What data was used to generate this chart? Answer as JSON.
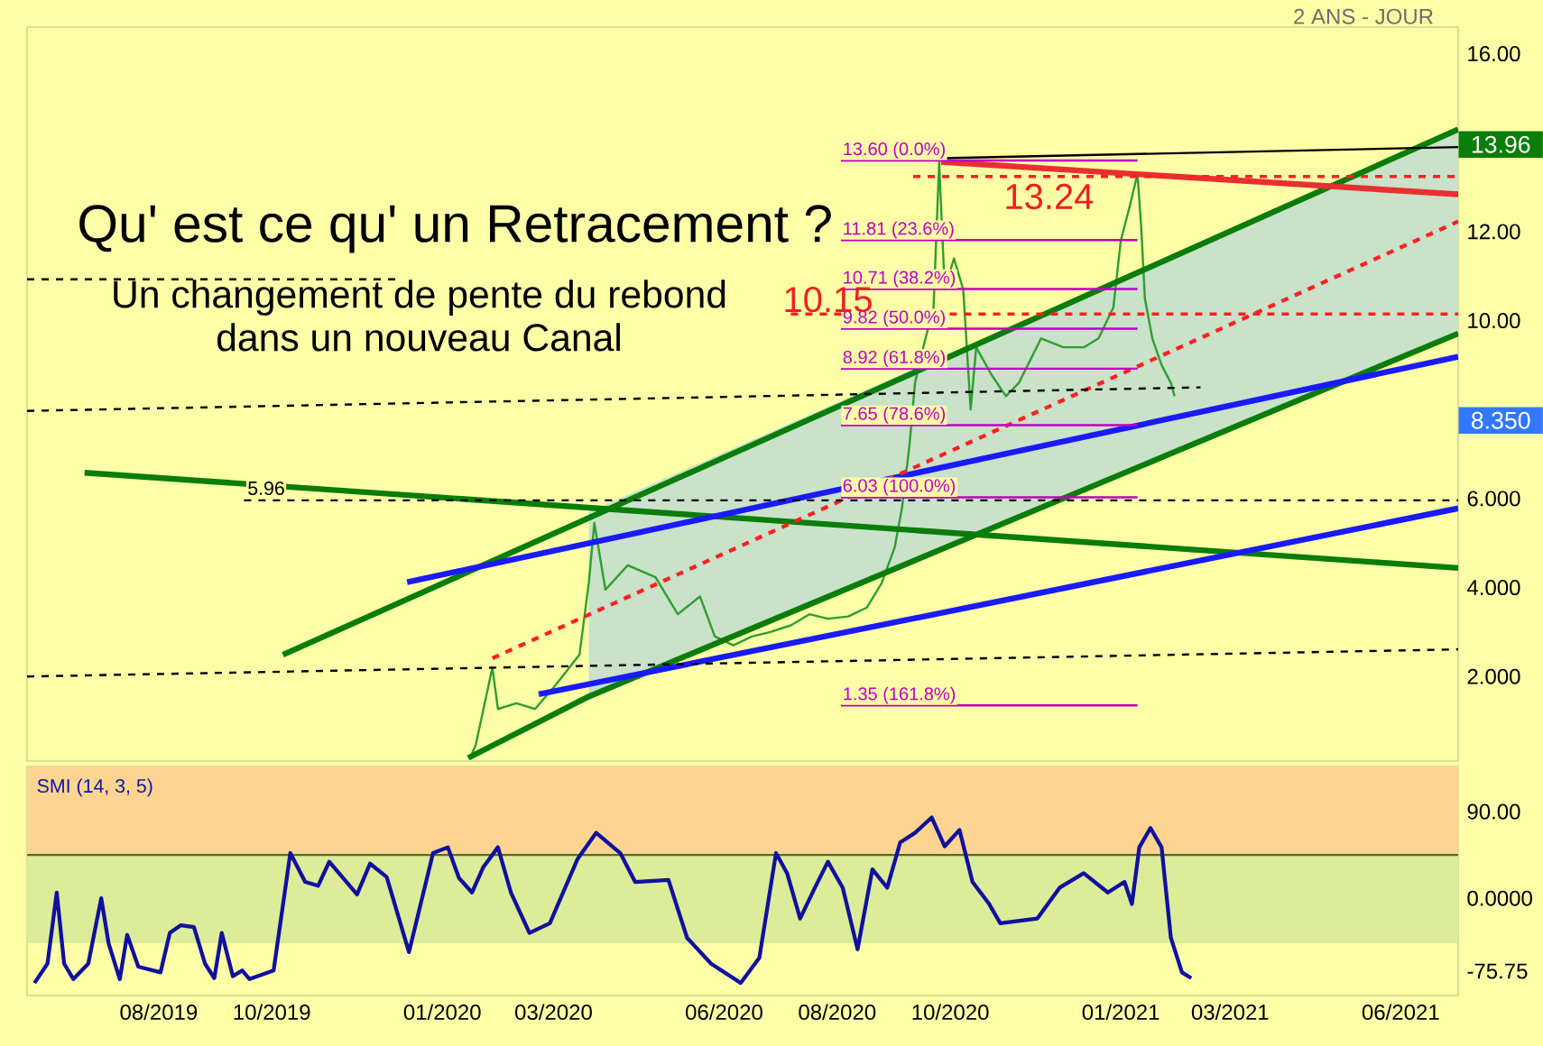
{
  "chart_data": [
    {
      "type": "line",
      "title": "Qu' est ce qu' un Retracement ?",
      "subtitle": "Un changement de pente du rebond dans un nouveau Canal",
      "xlim": [
        "2019-05-22",
        "2021-07-02"
      ],
      "ylim": [
        0.1,
        16.6
      ],
      "yticks": [
        {
          "value": 2,
          "label": "2.000"
        },
        {
          "value": 4,
          "label": "4.000"
        },
        {
          "value": 6,
          "label": "6.000"
        },
        {
          "value": 10,
          "label": "10.00"
        },
        {
          "value": 12,
          "label": "12.00"
        },
        {
          "value": 16,
          "label": "16.00"
        }
      ],
      "tick_labels": "y",
      "series": [
        {
          "type": "line",
          "color": "#2f9e2f",
          "line_style": "solid",
          "x": [
            "2020-01-16",
            "2020-01-19",
            "2020-01-28",
            "2020-01-31",
            "2020-02-10",
            "2020-02-20",
            "2020-03-02",
            "2020-03-15",
            "2020-03-20",
            "2020-03-23",
            "2020-03-29",
            "2020-04-10",
            "2020-04-25",
            "2020-05-07",
            "2020-05-19",
            "2020-05-27",
            "2020-06-06",
            "2020-06-16",
            "2020-06-26",
            "2020-07-07",
            "2020-07-17",
            "2020-07-27",
            "2020-08-07",
            "2020-08-17",
            "2020-08-25",
            "2020-09-01",
            "2020-09-05",
            "2020-09-09",
            "2020-09-12",
            "2020-09-17",
            "2020-09-22",
            "2020-09-25",
            "2020-09-28",
            "2020-10-03",
            "2020-10-08",
            "2020-10-12",
            "2020-10-15",
            "2020-10-23",
            "2020-10-31",
            "2020-11-07",
            "2020-11-19",
            "2020-12-01",
            "2020-12-12",
            "2020-12-20",
            "2020-12-28",
            "2021-01-01",
            "2021-01-06",
            "2021-01-10",
            "2021-01-12",
            "2021-01-14",
            "2021-01-18",
            "2021-01-23",
            "2021-01-28",
            "2021-01-30"
          ],
          "values": [
            0.17,
            0.46,
            2.2,
            1.27,
            1.4,
            1.27,
            1.8,
            2.49,
            4.1,
            5.45,
            3.95,
            4.5,
            4.23,
            3.4,
            3.8,
            2.9,
            2.7,
            2.9,
            3.0,
            3.15,
            3.4,
            3.3,
            3.35,
            3.55,
            4.1,
            4.9,
            5.8,
            7.2,
            8.6,
            9.5,
            10.3,
            13.56,
            10.7,
            11.4,
            10.7,
            8.0,
            9.4,
            8.8,
            8.3,
            8.6,
            9.6,
            9.4,
            9.4,
            9.6,
            10.3,
            11.8,
            12.6,
            13.3,
            12.1,
            10.5,
            9.6,
            9.0,
            8.6,
            8.3
          ]
        },
        {
          "type": "line",
          "color": "#0a7d0a",
          "line_style": "solid",
          "x": [
            "2019-10-07",
            "2021-07-02"
          ],
          "values": [
            2.49,
            14.3
          ]
        },
        {
          "type": "line",
          "color": "#0a7d0a",
          "line_style": "solid",
          "x": [
            "2020-01-15",
            "2020-03-20",
            "2021-07-02"
          ],
          "values": [
            0.17,
            1.55,
            9.71
          ],
          "lower": [
            null,
            1.55,
            9.71
          ],
          "upper": [
            null,
            5.7,
            14.3
          ]
        },
        {
          "type": "line",
          "color": "#0a7d0a",
          "line_style": "solid",
          "x": [
            "2019-06-22",
            "2021-07-02"
          ],
          "values": [
            6.58,
            4.44
          ]
        },
        {
          "type": "line",
          "color": "#1a1aff",
          "line_style": "solid",
          "x": [
            "2020-02-22",
            "2021-07-02"
          ],
          "values": [
            1.6,
            5.78
          ]
        },
        {
          "type": "line",
          "color": "#1a1aff",
          "line_style": "solid",
          "x": [
            "2019-12-13",
            "2021-07-02"
          ],
          "values": [
            4.12,
            9.19
          ]
        },
        {
          "type": "line",
          "color": "#e83030",
          "line_style": "solid",
          "x": [
            "2020-09-26",
            "2021-07-02"
          ],
          "values": [
            13.57,
            12.84
          ]
        },
        {
          "type": "line",
          "color": "#ff2020",
          "line_style": "dashed",
          "x": [
            "2020-01-28",
            "2021-07-02"
          ],
          "values": [
            2.41,
            12.23
          ]
        },
        {
          "type": "line",
          "color": "#ff2020",
          "line_style": "dashed",
          "x": [
            "2020-09-11",
            "2021-07-02"
          ],
          "values": [
            13.24,
            13.24
          ]
        },
        {
          "type": "line",
          "color": "#ff2020",
          "line_style": "dashed",
          "x": [
            "2020-07-07",
            "2021-07-02"
          ],
          "values": [
            10.15,
            10.15
          ]
        },
        {
          "type": "line",
          "color": "#000000",
          "line_style": "dashed",
          "x": [
            "2019-05-22",
            "2021-02-13"
          ],
          "values": [
            7.97,
            8.5
          ]
        },
        {
          "type": "line",
          "color": "#000000",
          "line_style": "dashed",
          "x": [
            "2019-09-16",
            "2021-07-02"
          ],
          "values": [
            5.96,
            5.96
          ]
        },
        {
          "type": "line",
          "color": "#000000",
          "line_style": "dashed",
          "x": [
            "2019-05-22",
            "2021-07-02"
          ],
          "values": [
            2.0,
            2.61
          ]
        },
        {
          "type": "line",
          "color": "#000000",
          "line_style": "dashed",
          "x": [
            "2019-05-22",
            "2019-12-07"
          ],
          "values": [
            10.93,
            10.93
          ]
        },
        {
          "type": "line",
          "color": "#000000",
          "line_style": "solid",
          "x": [
            "2020-09-26",
            "2021-07-02"
          ],
          "values": [
            13.65,
            13.9
          ]
        },
        {
          "type": "line",
          "color": "#c000c0",
          "line_style": "solid",
          "x": [
            "2020-08-03",
            "2021-01-10"
          ],
          "values": [
            13.6,
            13.6
          ]
        },
        {
          "type": "line",
          "color": "#c000c0",
          "line_style": "solid",
          "x": [
            "2020-08-03",
            "2021-01-10"
          ],
          "values": [
            11.81,
            11.81
          ]
        },
        {
          "type": "line",
          "color": "#c000c0",
          "line_style": "solid",
          "x": [
            "2020-08-03",
            "2021-01-10"
          ],
          "values": [
            10.71,
            10.71
          ]
        },
        {
          "type": "line",
          "color": "#c000c0",
          "line_style": "solid",
          "x": [
            "2020-08-03",
            "2021-01-10"
          ],
          "values": [
            9.82,
            9.82
          ]
        },
        {
          "type": "line",
          "color": "#c000c0",
          "line_style": "solid",
          "x": [
            "2020-08-03",
            "2021-01-10"
          ],
          "values": [
            8.92,
            8.92
          ]
        },
        {
          "type": "line",
          "color": "#c000c0",
          "line_style": "solid",
          "x": [
            "2020-08-03",
            "2021-01-10"
          ],
          "values": [
            7.65,
            7.65
          ]
        },
        {
          "type": "line",
          "color": "#c000c0",
          "line_style": "solid",
          "x": [
            "2020-08-03",
            "2021-01-10"
          ],
          "values": [
            6.03,
            6.03
          ]
        },
        {
          "type": "line",
          "color": "#c000c0",
          "line_style": "solid",
          "x": [
            "2020-08-03",
            "2021-01-10"
          ],
          "values": [
            1.35,
            1.35
          ]
        }
      ],
      "annotations": [
        "2 ANS - JOUR",
        {
          "text": "13.60 (0.0%)",
          "x": "2020-08-03",
          "y": 13.6
        },
        {
          "text": "11.81 (23.6%)",
          "x": "2020-08-03",
          "y": 11.81
        },
        {
          "text": "10.71 (38.2%)",
          "x": "2020-08-03",
          "y": 10.71
        },
        {
          "text": "9.82 (50.0%)",
          "x": "2020-08-03",
          "y": 9.82
        },
        {
          "text": "8.92 (61.8%)",
          "x": "2020-08-03",
          "y": 8.92
        },
        {
          "text": "7.65 (78.6%)",
          "x": "2020-08-03",
          "y": 7.65
        },
        {
          "text": "6.03 (100.0%)",
          "x": "2020-08-03",
          "y": 6.03
        },
        {
          "text": "1.35 (161.8%)",
          "x": "2020-08-03",
          "y": 1.35
        },
        "13.24",
        {
          "text": "10.15",
          "x": "2020-07-27",
          "y": 10.15
        },
        {
          "text": "5.96",
          "x": "2019-09-28",
          "y": 5.96
        },
        {
          "text": "13.96",
          "x": "2021-07-02",
          "y": 13.96
        },
        "8.350"
      ]
    },
    {
      "type": "line",
      "title": "SMI (14, 3, 5)",
      "xlim": [
        "2019-05-22",
        "2021-07-02"
      ],
      "ylim": [
        -101,
        137
      ],
      "xticks": [
        {
          "value": "2019-08",
          "label": "08/2019"
        },
        {
          "value": "2019-10",
          "label": "10/2019"
        },
        {
          "value": "2020-01",
          "label": "01/2020"
        },
        {
          "value": "2020-03",
          "label": "03/2020"
        },
        {
          "value": "2020-06",
          "label": "06/2020"
        },
        {
          "value": "2020-08",
          "label": "08/2020"
        },
        {
          "value": "2020-10",
          "label": "10/2020"
        },
        {
          "value": "2021-01",
          "label": "01/2021"
        },
        {
          "value": "2021-03",
          "label": "03/2021"
        },
        {
          "value": "2021-06",
          "label": "06/2021"
        }
      ],
      "yticks": [
        {
          "value": 90,
          "label": "90.00"
        },
        {
          "value": 0,
          "label": "0.0000"
        },
        {
          "value": -75.75,
          "label": "-75.75"
        }
      ],
      "bands": [
        {
          "axis": "y",
          "from": 45,
          "to": 137,
          "color": "#fdd590"
        },
        {
          "axis": "y",
          "from": -47,
          "to": 45,
          "color": "#dcec98"
        }
      ],
      "ref_lines": [
        {
          "axis": "y",
          "value": 45,
          "color": "#556b2f"
        }
      ],
      "series": [
        {
          "color": "#1010a0",
          "line_style": "solid",
          "x": [
            "2019-05-26",
            "2019-06-02",
            "2019-06-07",
            "2019-06-11",
            "2019-06-16",
            "2019-06-24",
            "2019-07-01",
            "2019-07-05",
            "2019-07-11",
            "2019-07-15",
            "2019-07-21",
            "2019-08-02",
            "2019-08-07",
            "2019-08-13",
            "2019-08-20",
            "2019-08-26",
            "2019-08-31",
            "2019-09-04",
            "2019-09-10",
            "2019-09-15",
            "2019-09-19",
            "2019-10-02",
            "2019-10-11",
            "2019-10-19",
            "2019-10-26",
            "2019-11-01",
            "2019-11-16",
            "2019-11-23",
            "2019-12-02",
            "2019-12-14",
            "2019-12-27",
            "2020-01-04",
            "2020-01-10",
            "2020-01-17",
            "2020-01-23",
            "2020-01-31",
            "2020-02-07",
            "2020-02-17",
            "2020-02-28",
            "2020-03-14",
            "2020-03-24",
            "2020-04-06",
            "2020-04-14",
            "2020-05-02",
            "2020-05-12",
            "2020-05-25",
            "2020-06-10",
            "2020-06-20",
            "2020-06-29",
            "2020-07-05",
            "2020-07-12",
            "2020-07-20",
            "2020-07-27",
            "2020-08-04",
            "2020-08-12",
            "2020-08-20",
            "2020-08-28",
            "2020-09-04",
            "2020-09-12",
            "2020-09-21",
            "2020-09-28",
            "2020-10-06",
            "2020-10-13",
            "2020-10-22",
            "2020-10-28",
            "2020-11-17",
            "2020-11-29",
            "2020-12-12",
            "2020-12-25",
            "2021-01-03",
            "2021-01-07",
            "2021-01-11",
            "2021-01-17",
            "2021-01-23",
            "2021-01-28",
            "2021-02-03",
            "2021-02-08"
          ],
          "values": [
            -88,
            -68,
            6,
            -68,
            -84,
            -68,
            0,
            -47,
            -84,
            -38,
            -71,
            -77,
            -36,
            -28,
            -30,
            -68,
            -83,
            -36,
            -81,
            -75,
            -84,
            -75,
            47,
            17,
            13,
            38,
            4,
            36,
            22,
            -56,
            47,
            53,
            21,
            6,
            32,
            53,
            6,
            -36,
            -26,
            41,
            68,
            47,
            17,
            19,
            -41,
            -68,
            -88,
            -62,
            47,
            26,
            -21,
            11,
            38,
            11,
            -53,
            30,
            11,
            58,
            68,
            84,
            54,
            71,
            17,
            -6,
            -26,
            -21,
            11,
            26,
            6,
            17,
            -6,
            53,
            73,
            53,
            -41,
            -77,
            -83
          ]
        }
      ]
    }
  ]
}
